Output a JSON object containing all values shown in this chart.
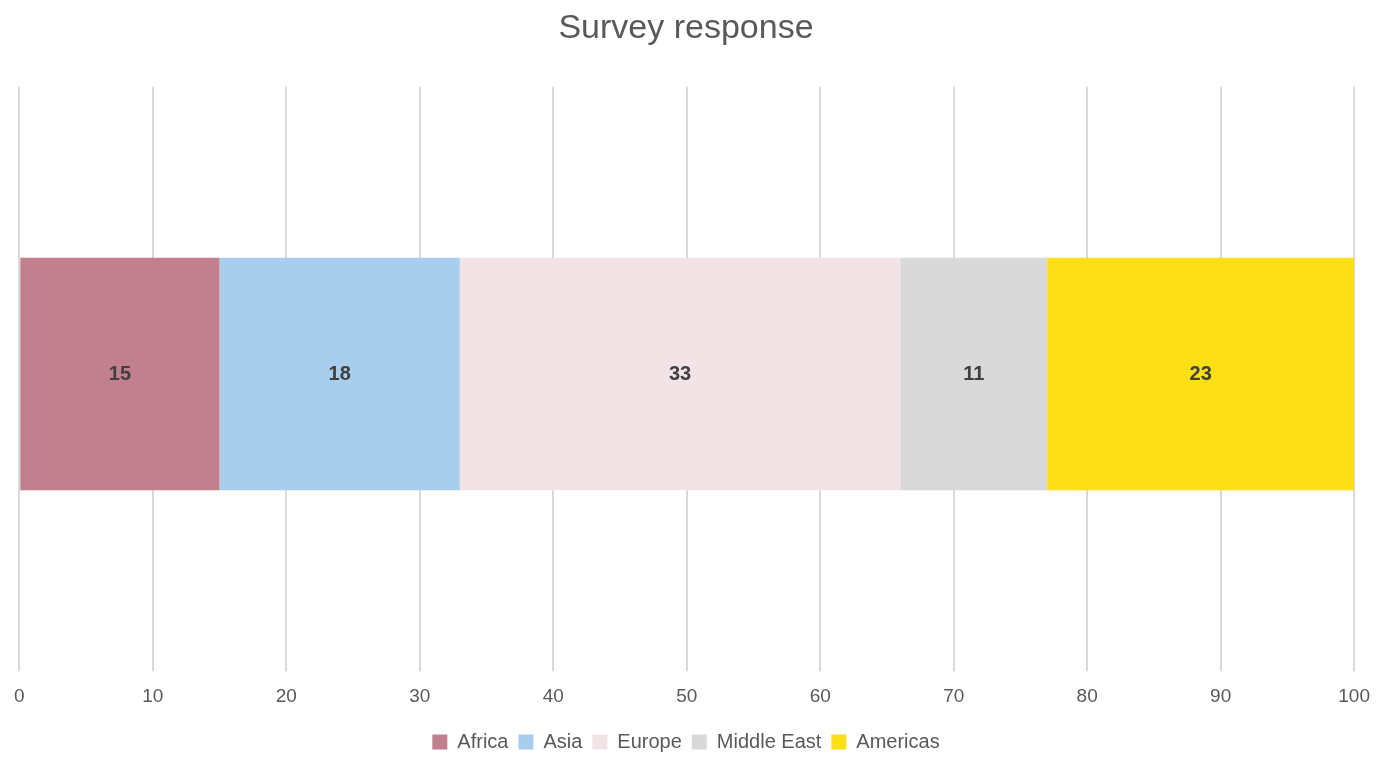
{
  "chart_data": {
    "type": "bar",
    "orientation": "horizontal",
    "stacked": true,
    "title": "Survey response",
    "categories": [
      null
    ],
    "series": [
      {
        "name": "Africa",
        "color": "#c27f8e",
        "values": [
          15
        ]
      },
      {
        "name": "Asia",
        "color": "#a9cdec",
        "values": [
          18
        ]
      },
      {
        "name": "Europe",
        "color": "#f2e4e6",
        "values": [
          33
        ]
      },
      {
        "name": "Middle East",
        "color": "#d9d9d9",
        "values": [
          11
        ]
      },
      {
        "name": "Americas",
        "color": "#fddf16",
        "values": [
          23
        ]
      }
    ],
    "xlim": [
      0,
      100
    ],
    "xticks": [
      0,
      10,
      20,
      30,
      40,
      50,
      60,
      70,
      80,
      90,
      100
    ],
    "grid": "x",
    "legend": "bottom",
    "tick_labels": "x",
    "data_labels": true
  }
}
